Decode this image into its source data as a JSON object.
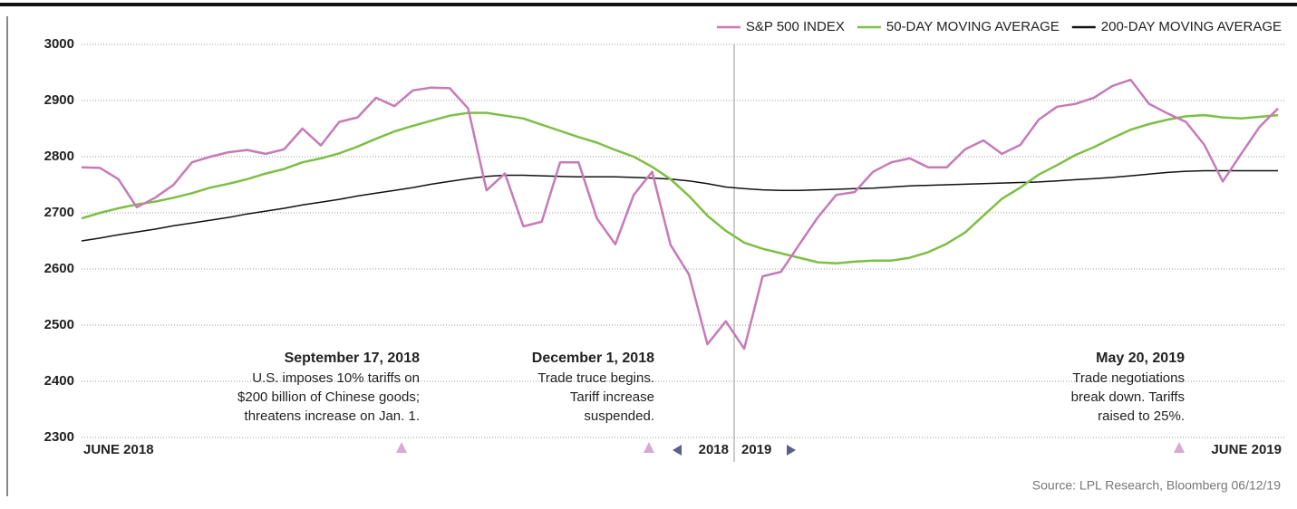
{
  "chart_data": {
    "type": "line",
    "categories": [
      "JUNE 2018",
      null,
      null,
      null,
      null,
      null,
      null,
      null,
      null,
      null,
      null,
      null,
      null,
      null,
      null,
      null,
      null,
      null,
      null,
      null,
      null,
      null,
      null,
      null,
      null,
      null,
      null,
      null,
      null,
      null,
      null,
      null,
      null,
      null,
      null,
      null,
      null,
      null,
      null,
      null,
      null,
      null,
      null,
      null,
      null,
      null,
      null,
      null,
      null,
      null,
      null,
      null,
      null,
      null,
      null,
      null,
      null,
      null,
      null,
      null,
      null,
      null,
      null,
      null,
      null,
      "JUNE 2019"
    ],
    "series": [
      {
        "name": "S&P 500 INDEX",
        "color": "#c67ab8",
        "values": [
          2781,
          2780,
          2760,
          2710,
          2727,
          2750,
          2790,
          2800,
          2808,
          2812,
          2805,
          2813,
          2850,
          2820,
          2862,
          2870,
          2905,
          2890,
          2918,
          2923,
          2922,
          2886,
          2740,
          2770,
          2676,
          2684,
          2790,
          2790,
          2690,
          2644,
          2732,
          2773,
          2643,
          2590,
          2466,
          2507,
          2458,
          2587,
          2595,
          2644,
          2692,
          2732,
          2737,
          2773,
          2790,
          2797,
          2781,
          2781,
          2813,
          2829,
          2805,
          2821,
          2866,
          2889,
          2894,
          2905,
          2926,
          2937,
          2894,
          2877,
          2862,
          2821,
          2756,
          2805,
          2853,
          2886
        ]
      },
      {
        "name": "50-DAY MOVING AVERAGE",
        "color": "#7dbf45",
        "values": [
          2690,
          2700,
          2708,
          2715,
          2720,
          2727,
          2735,
          2745,
          2752,
          2760,
          2770,
          2778,
          2790,
          2797,
          2806,
          2818,
          2832,
          2845,
          2855,
          2864,
          2873,
          2878,
          2878,
          2873,
          2868,
          2857,
          2846,
          2835,
          2825,
          2812,
          2800,
          2782,
          2760,
          2730,
          2695,
          2668,
          2647,
          2636,
          2628,
          2620,
          2612,
          2610,
          2613,
          2615,
          2615,
          2620,
          2630,
          2645,
          2665,
          2695,
          2725,
          2745,
          2768,
          2785,
          2803,
          2817,
          2833,
          2848,
          2858,
          2866,
          2872,
          2874,
          2870,
          2868,
          2871,
          2874
        ]
      },
      {
        "name": "200-DAY MOVING AVERAGE",
        "color": "#111111",
        "values": [
          2650,
          2655,
          2661,
          2666,
          2671,
          2677,
          2682,
          2687,
          2692,
          2698,
          2703,
          2708,
          2714,
          2719,
          2724,
          2730,
          2735,
          2740,
          2745,
          2751,
          2756,
          2761,
          2765,
          2767,
          2767,
          2766,
          2765,
          2764,
          2764,
          2764,
          2763,
          2762,
          2760,
          2757,
          2752,
          2746,
          2743,
          2741,
          2740,
          2740,
          2741,
          2742,
          2743,
          2744,
          2746,
          2748,
          2749,
          2750,
          2751,
          2752,
          2753,
          2754,
          2755,
          2757,
          2759,
          2761,
          2763,
          2766,
          2769,
          2772,
          2774,
          2775,
          2775,
          2775,
          2775,
          2775
        ]
      }
    ],
    "ylim": [
      2300,
      3000
    ],
    "yticks": [
      2300,
      2400,
      2500,
      2600,
      2700,
      2800,
      2900,
      3000
    ],
    "grid": true,
    "year_labels": [
      "2018",
      "2019"
    ],
    "annotations": [
      {
        "title": "September 17, 2018",
        "lines": [
          "U.S. imposes 10% tariffs on",
          "$200 billion of Chinese goods;",
          "threatens increase on Jan. 1."
        ]
      },
      {
        "title": "December 1, 2018",
        "lines": [
          "Trade truce begins.",
          "Tariff increase",
          "suspended."
        ]
      },
      {
        "title": "May 20, 2019",
        "lines": [
          "Trade negotiations",
          "break down. Tariffs",
          "raised to 25%."
        ]
      }
    ],
    "source": "Source: LPL Research, Bloomberg 06/12/19"
  }
}
